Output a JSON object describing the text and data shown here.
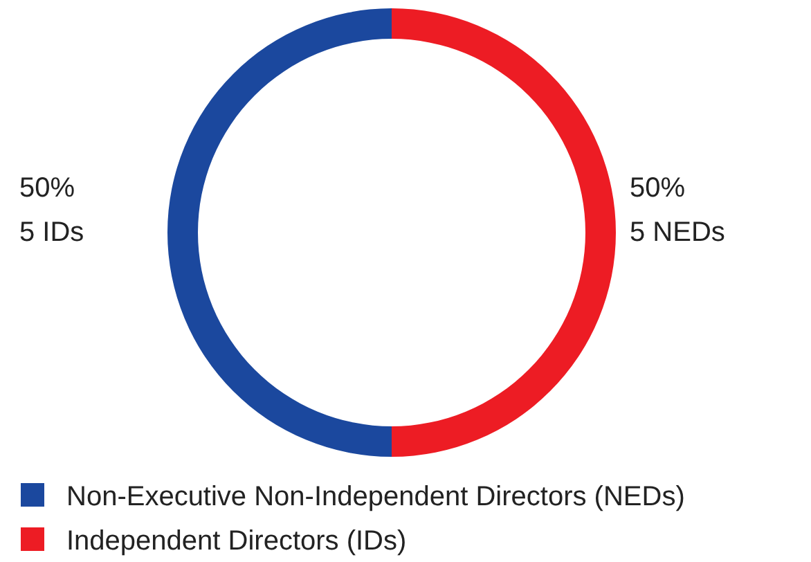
{
  "chart_data": {
    "type": "donut",
    "categories": [
      "Non-Executive Non-Independent Directors (NEDs)",
      "Independent Directors (IDs)"
    ],
    "values": [
      50,
      50
    ],
    "colors": [
      "#1b489e",
      "#ed1c24"
    ],
    "value_labels": [
      "50%\n5 IDs",
      "50%\n5 NEDs"
    ],
    "legend": "bottom left"
  }
}
